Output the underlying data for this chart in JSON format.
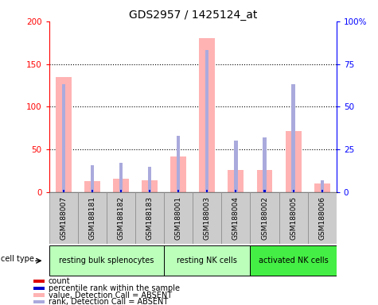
{
  "title": "GDS2957 / 1425124_at",
  "samples": [
    "GSM188007",
    "GSM188181",
    "GSM188182",
    "GSM188183",
    "GSM188001",
    "GSM188003",
    "GSM188004",
    "GSM188002",
    "GSM188005",
    "GSM188006"
  ],
  "value_absent": [
    135,
    13,
    16,
    14,
    42,
    180,
    26,
    26,
    72,
    10
  ],
  "rank_absent": [
    63,
    16,
    17,
    15,
    33,
    83,
    30,
    32,
    63,
    7
  ],
  "cell_types": [
    {
      "label": "resting bulk splenocytes",
      "start": 0,
      "end": 4,
      "color": "#bbffbb"
    },
    {
      "label": "resting NK cells",
      "start": 4,
      "end": 7,
      "color": "#bbffbb"
    },
    {
      "label": "activated NK cells",
      "start": 7,
      "end": 10,
      "color": "#44ee44"
    }
  ],
  "ylim_left": [
    0,
    200
  ],
  "ylim_right": [
    0,
    100
  ],
  "yticks_left": [
    0,
    50,
    100,
    150,
    200
  ],
  "yticks_right": [
    0,
    25,
    50,
    75,
    100
  ],
  "yticklabels_right": [
    "0",
    "25",
    "50",
    "75",
    "100%"
  ],
  "value_absent_color": "#ffb3b3",
  "rank_absent_color": "#aaaadd",
  "count_color": "#dd0000",
  "rank_color": "#0000cc",
  "sample_bg_color": "#cccccc",
  "plot_bg": "white"
}
